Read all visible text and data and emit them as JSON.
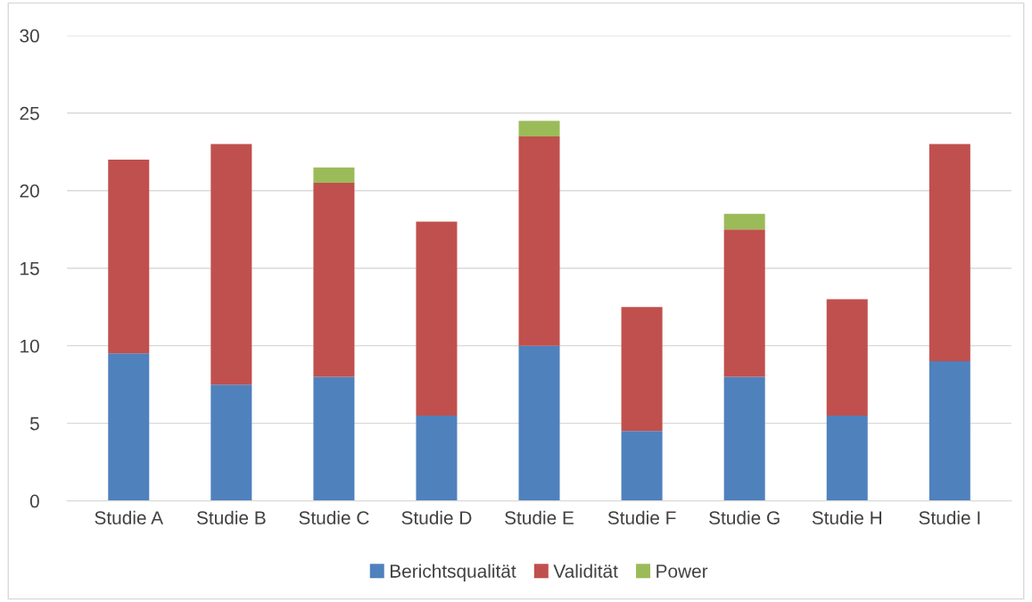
{
  "chart_data": {
    "type": "bar",
    "stacked": true,
    "categories": [
      "Studie A",
      "Studie B",
      "Studie C",
      "Studie D",
      "Studie E",
      "Studie F",
      "Studie G",
      "Studie H",
      "Studie I"
    ],
    "series": [
      {
        "name": "Berichtsqualität",
        "color": "#4f81bd",
        "values": [
          9.5,
          7.5,
          8,
          5.5,
          10,
          4.5,
          8,
          5.5,
          9
        ]
      },
      {
        "name": "Validität",
        "color": "#c0504d",
        "values": [
          12.5,
          15.5,
          12.5,
          12.5,
          13.5,
          8,
          9.5,
          7.5,
          14
        ]
      },
      {
        "name": "Power",
        "color": "#9bbb59",
        "values": [
          null,
          null,
          1,
          null,
          1,
          null,
          1,
          null,
          null
        ]
      }
    ],
    "ylim": [
      0,
      30
    ],
    "yticks": [
      0,
      5,
      10,
      15,
      20,
      25,
      30
    ],
    "grid": "y",
    "legend": "bottom"
  }
}
